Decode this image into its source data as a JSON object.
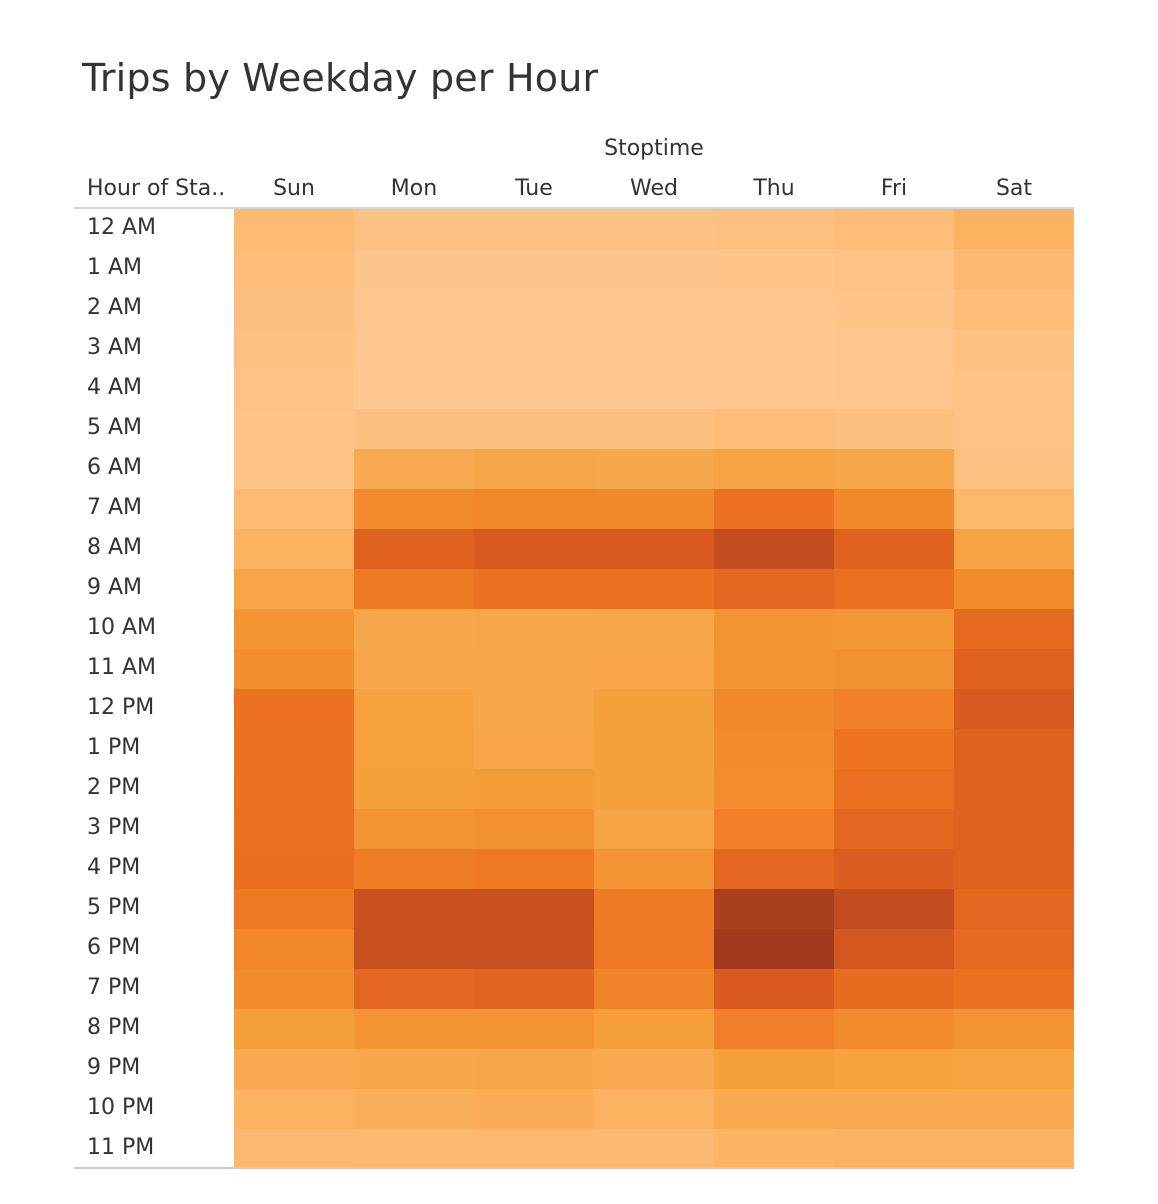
{
  "title": "Trips by Weekday per Hour",
  "chart_data": {
    "type": "heatmap",
    "title": "Trips by Weekday per Hour",
    "column_group_label": "Stoptime",
    "row_header": "Hour of Sta..",
    "columns": [
      "Sun",
      "Mon",
      "Tue",
      "Wed",
      "Thu",
      "Fri",
      "Sat"
    ],
    "rows": [
      "12 AM",
      "1 AM",
      "2 AM",
      "3 AM",
      "4 AM",
      "5 AM",
      "6 AM",
      "7 AM",
      "8 AM",
      "9 AM",
      "10 AM",
      "11 AM",
      "12 PM",
      "1 PM",
      "2 PM",
      "3 PM",
      "4 PM",
      "5 PM",
      "6 PM",
      "7 PM",
      "8 PM",
      "9 PM",
      "10 PM",
      "11 PM"
    ],
    "values": [
      [
        0.14,
        0.08,
        0.08,
        0.08,
        0.09,
        0.12,
        0.22
      ],
      [
        0.12,
        0.04,
        0.04,
        0.04,
        0.05,
        0.07,
        0.15
      ],
      [
        0.1,
        0.03,
        0.03,
        0.03,
        0.03,
        0.05,
        0.12
      ],
      [
        0.08,
        0.02,
        0.02,
        0.02,
        0.02,
        0.03,
        0.09
      ],
      [
        0.06,
        0.02,
        0.02,
        0.02,
        0.02,
        0.03,
        0.07
      ],
      [
        0.05,
        0.1,
        0.1,
        0.1,
        0.12,
        0.1,
        0.06
      ],
      [
        0.05,
        0.3,
        0.33,
        0.32,
        0.36,
        0.34,
        0.08
      ],
      [
        0.14,
        0.5,
        0.52,
        0.51,
        0.62,
        0.51,
        0.17
      ],
      [
        0.22,
        0.74,
        0.8,
        0.8,
        0.88,
        0.74,
        0.36
      ],
      [
        0.35,
        0.58,
        0.62,
        0.62,
        0.7,
        0.63,
        0.5
      ],
      [
        0.45,
        0.32,
        0.33,
        0.34,
        0.46,
        0.44,
        0.68
      ],
      [
        0.48,
        0.33,
        0.34,
        0.35,
        0.45,
        0.47,
        0.75
      ],
      [
        0.62,
        0.38,
        0.34,
        0.4,
        0.51,
        0.55,
        0.8
      ],
      [
        0.63,
        0.39,
        0.35,
        0.4,
        0.5,
        0.6,
        0.75
      ],
      [
        0.62,
        0.4,
        0.42,
        0.4,
        0.49,
        0.64,
        0.75
      ],
      [
        0.64,
        0.46,
        0.47,
        0.36,
        0.55,
        0.7,
        0.75
      ],
      [
        0.65,
        0.56,
        0.58,
        0.45,
        0.7,
        0.78,
        0.74
      ],
      [
        0.58,
        0.86,
        0.86,
        0.57,
        0.97,
        0.88,
        0.7
      ],
      [
        0.52,
        0.86,
        0.86,
        0.58,
        1.0,
        0.82,
        0.68
      ],
      [
        0.5,
        0.7,
        0.72,
        0.53,
        0.8,
        0.66,
        0.63
      ],
      [
        0.4,
        0.46,
        0.46,
        0.4,
        0.55,
        0.5,
        0.46
      ],
      [
        0.3,
        0.32,
        0.33,
        0.3,
        0.4,
        0.38,
        0.37
      ],
      [
        0.22,
        0.25,
        0.27,
        0.22,
        0.3,
        0.3,
        0.3
      ],
      [
        0.16,
        0.15,
        0.15,
        0.15,
        0.2,
        0.22,
        0.22
      ]
    ],
    "color_scale": [
      "#fec994",
      "#fcb465",
      "#f5a03b",
      "#ee7420",
      "#d95a1f",
      "#a23a20"
    ],
    "grid": false
  }
}
